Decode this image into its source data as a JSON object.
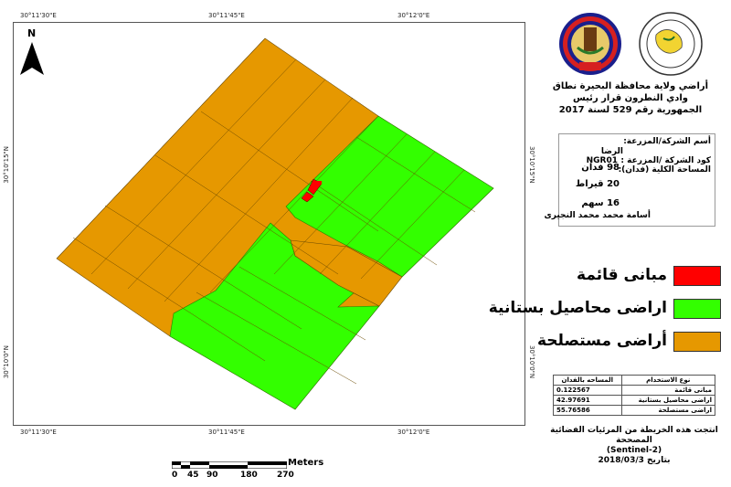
{
  "coordinates": {
    "top": [
      "30°11'30\"E",
      "30°11'45\"E",
      "30°12'0\"E"
    ],
    "bottom": [
      "30°11'30\"E",
      "30°11'45\"E",
      "30°12'0\"E"
    ],
    "left": [
      "30°10'15\"N",
      "30°10'0\"N"
    ],
    "right": [
      "30°10'15\"N",
      "30°10'0\"N"
    ]
  },
  "north_label": "N",
  "title": {
    "line1": "أراضي ولاية محافظة البحيرة نطاق",
    "line2": "وادي النطرون قرار رئيس",
    "line3": "الجمهورية رقم 529 لسنة 2017"
  },
  "info": {
    "company_label": "أسم الشركة/المزرعة:",
    "company_value": "الرضا",
    "code_label": "كود الشركة /المزرعة :",
    "code_value": "NGR01",
    "area_label": "المساحة الكلية (فدان):",
    "area_feddan": "98 فدان",
    "area_qirat": "20 قيراط",
    "area_sahm": "16 سهم",
    "owner": "أسامة محمد محمد النجيرى"
  },
  "legend": [
    {
      "label": "مبانى قائمة",
      "color": "#ff0000"
    },
    {
      "label": "اراضى محاصيل بستانية",
      "color": "#33ff00"
    },
    {
      "label": "أراضى مستصلحة",
      "color": "#e69800"
    }
  ],
  "stats": {
    "headers": [
      "نوع الاستخدام",
      "المساحه بالفدان"
    ],
    "rows": [
      [
        "مبانى قائمة",
        "0.122567"
      ],
      [
        "اراضى محاصيل بستانية",
        "42.97691"
      ],
      [
        "اراضى مستصلحة",
        "55.76586"
      ]
    ]
  },
  "source": {
    "line1": "انتجت هذه الخريطة من المرئيات الفضائية المصححة",
    "line2": "(Sentinel-2)",
    "line3": "بتاريخ 2018/03/3"
  },
  "scale": {
    "ticks": [
      "0",
      "45",
      "90",
      "180",
      "270"
    ],
    "unit": "Meters"
  },
  "colors": {
    "reclaimed": "#e69800",
    "orchard": "#33ff00",
    "buildings": "#ff0000"
  }
}
